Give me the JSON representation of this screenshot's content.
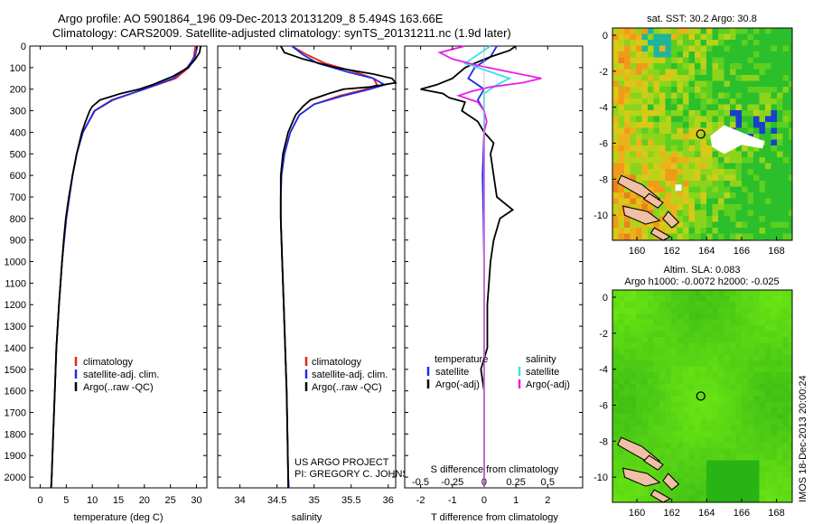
{
  "header": {
    "line1": "Argo profile: AO 5901864_196 09-Dec-2013 20131209_8 5.494S 163.66E",
    "line2": "Climatology: CARS2009. Satellite-adjusted climatology: synTS_20131211.nc (1.9d later)"
  },
  "colors": {
    "climatology": "#e8201c",
    "satellite": "#1b2ee8",
    "argo": "#000000",
    "salinity_satellite": "#36e3e8",
    "salinity_argo": "#e81ee8"
  },
  "chart_data": [
    {
      "type": "line",
      "name": "temperature-profile",
      "xlabel": "temperature (deg C)",
      "xlim": [
        -2,
        32
      ],
      "xticks": [
        "0",
        "5",
        "10",
        "15",
        "20",
        "25",
        "30"
      ],
      "ylim": [
        0,
        2050
      ],
      "yticks": [
        "0",
        "100",
        "200",
        "300",
        "400",
        "500",
        "600",
        "700",
        "800",
        "900",
        "1000",
        "1100",
        "1200",
        "1300",
        "1400",
        "1500",
        "1600",
        "1700",
        "1800",
        "1900",
        "2000"
      ],
      "legend": [
        "climatology",
        "satellite-adj. clim.",
        "Argo(..raw -QC)"
      ],
      "series": [
        {
          "name": "climatology",
          "depth": [
            0,
            50,
            100,
            150,
            200,
            250,
            300,
            400,
            500,
            600,
            700,
            800,
            900,
            1000,
            1200,
            1400,
            1600,
            1800,
            2000,
            2050
          ],
          "values": [
            29.8,
            29.5,
            28.5,
            26,
            20,
            14,
            10.5,
            8.2,
            7,
            6.2,
            5.6,
            5,
            4.6,
            4.2,
            3.6,
            3.1,
            2.8,
            2.5,
            2.2,
            2.1
          ]
        },
        {
          "name": "satellite-adj. clim.",
          "depth": [
            0,
            50,
            100,
            150,
            200,
            250,
            300,
            400,
            500,
            600,
            700,
            800,
            900,
            1000,
            1200,
            1400,
            1600,
            1800,
            2000,
            2050
          ],
          "values": [
            30.2,
            29.7,
            28.2,
            25.5,
            20,
            13.8,
            10.4,
            8.2,
            7,
            6.2,
            5.6,
            5,
            4.6,
            4.2,
            3.6,
            3.1,
            2.8,
            2.5,
            2.2,
            2.1
          ]
        },
        {
          "name": "Argo(..raw -QC)",
          "depth": [
            0,
            30,
            60,
            100,
            140,
            180,
            200,
            220,
            250,
            280,
            300,
            350,
            400,
            500,
            600,
            700,
            800,
            900,
            1000,
            1200,
            1400,
            1600,
            1800,
            2000,
            2050
          ],
          "values": [
            30.8,
            30.6,
            29.8,
            28.4,
            25.5,
            21.5,
            19,
            15.5,
            11.5,
            10,
            9.5,
            8.7,
            8,
            7,
            6.2,
            5.5,
            4.9,
            4.5,
            4.2,
            3.6,
            3.1,
            2.8,
            2.5,
            2.2,
            2.1
          ]
        }
      ]
    },
    {
      "type": "line",
      "name": "salinity-profile",
      "xlabel": "salinity",
      "xlim": [
        33.7,
        36.1
      ],
      "xticks": [
        "34",
        "34.5",
        "35",
        "35.5",
        "36"
      ],
      "ylim": [
        0,
        2050
      ],
      "legend": [
        "climatology",
        "satellite-adj. clim.",
        "Argo(..raw -QC)"
      ],
      "series": [
        {
          "name": "climatology",
          "depth": [
            0,
            40,
            80,
            120,
            150,
            180,
            200,
            230,
            270,
            320,
            400,
            500,
            600,
            700,
            800,
            900,
            1000,
            1200,
            1400,
            1600,
            1800,
            2000,
            2050
          ],
          "values": [
            34.7,
            34.9,
            35.15,
            35.55,
            35.8,
            35.85,
            35.7,
            35.35,
            35.0,
            34.8,
            34.68,
            34.6,
            34.56,
            34.55,
            34.55,
            34.56,
            34.57,
            34.59,
            34.61,
            34.63,
            34.64,
            34.65,
            34.66
          ]
        },
        {
          "name": "satellite-adj. clim.",
          "depth": [
            0,
            40,
            80,
            120,
            150,
            180,
            200,
            230,
            270,
            320,
            400,
            500,
            600,
            700,
            800,
            900,
            1000,
            1200,
            1400,
            1600,
            1800,
            2000,
            2050
          ],
          "values": [
            34.7,
            34.85,
            35.05,
            35.45,
            35.8,
            35.95,
            35.75,
            35.4,
            35.0,
            34.8,
            34.68,
            34.6,
            34.56,
            34.55,
            34.55,
            34.56,
            34.57,
            34.59,
            34.61,
            34.63,
            34.64,
            34.65,
            34.66
          ]
        },
        {
          "name": "Argo(..raw -QC)",
          "depth": [
            0,
            30,
            60,
            100,
            130,
            150,
            170,
            190,
            200,
            220,
            250,
            280,
            320,
            400,
            500,
            600,
            700,
            800,
            900,
            1000,
            1200,
            1400,
            1600,
            1800,
            2000,
            2050
          ],
          "values": [
            34.55,
            34.6,
            34.85,
            35.3,
            35.8,
            36.05,
            36.1,
            35.75,
            35.4,
            35.2,
            34.95,
            34.85,
            34.75,
            34.65,
            34.58,
            34.55,
            34.55,
            34.55,
            34.56,
            34.57,
            34.59,
            34.61,
            34.63,
            34.64,
            34.65,
            34.65
          ]
        }
      ]
    },
    {
      "type": "line",
      "name": "difference-profile",
      "xlabel_bottom": "T difference from climatology",
      "xlabel_top": "S difference from climatology",
      "xlim": [
        -2.5,
        3.1
      ],
      "xticks_T": [
        "-2",
        "-1",
        "0",
        "1",
        "2"
      ],
      "xticks_S": [
        "-0.5",
        "-0.25",
        "0",
        "0.25",
        "0.5"
      ],
      "legend_temperature": {
        "header": "temperature",
        "entries": [
          "satellite",
          "Argo(-adj)"
        ]
      },
      "legend_salinity": {
        "header": "salinity",
        "entries": [
          "satellite",
          "Argo(-adj)"
        ]
      },
      "series": [
        {
          "name": "T satellite",
          "depth": [
            0,
            50,
            100,
            150,
            200,
            250,
            300,
            400,
            600,
            800,
            1000,
            1500,
            2000,
            2050
          ],
          "values": [
            0.4,
            0.2,
            -0.3,
            -0.5,
            0,
            -0.2,
            0,
            0,
            -0.05,
            -0.02,
            0,
            0,
            0,
            0
          ]
        },
        {
          "name": "T Argo(-adj)",
          "depth": [
            0,
            20,
            50,
            80,
            100,
            150,
            180,
            200,
            220,
            240,
            260,
            300,
            350,
            400,
            450,
            500,
            600,
            700,
            760,
            800,
            900,
            1000,
            1200,
            1400,
            1500,
            1600,
            1800,
            2000,
            2050
          ],
          "values": [
            1.0,
            0.8,
            0.2,
            -0.3,
            -0.6,
            -1.0,
            -1.5,
            -2.0,
            -1.3,
            -1.1,
            -0.6,
            -0.7,
            -0.2,
            0,
            0.3,
            0.2,
            0.3,
            0.4,
            0.9,
            0.5,
            0.3,
            0.2,
            0.1,
            0.1,
            -0.1,
            0,
            0,
            0,
            0
          ]
        },
        {
          "name": "S satellite",
          "depth": [
            0,
            40,
            80,
            120,
            150,
            180,
            220,
            300,
            400,
            600,
            1000,
            1500,
            2000,
            2050
          ],
          "values": [
            0.05,
            -0.05,
            -0.15,
            0.05,
            0.2,
            0.1,
            0.0,
            0.0,
            0.0,
            0.0,
            0.0,
            0.0,
            0.0,
            0.0
          ]
        },
        {
          "name": "S Argo(-adj)",
          "depth": [
            0,
            30,
            60,
            90,
            120,
            150,
            170,
            190,
            210,
            230,
            260,
            300,
            350,
            400,
            500,
            700,
            1000,
            1500,
            2000,
            2050
          ],
          "values": [
            -0.15,
            -0.35,
            -0.25,
            -0.05,
            0.2,
            0.45,
            0.3,
            0.05,
            -0.1,
            -0.2,
            -0.05,
            0.0,
            0.02,
            0.0,
            0.0,
            0.0,
            0.0,
            0.0,
            0.0,
            0.0
          ]
        }
      ]
    },
    {
      "type": "heatmap",
      "name": "sst-map",
      "title": "sat. SST: 30.2 Argo: 30.8",
      "xticks": [
        "160",
        "162",
        "164",
        "166",
        "168"
      ],
      "yticks": [
        "0",
        "-2",
        "-4",
        "-6",
        "-8",
        "-10"
      ],
      "xlim": [
        158.6,
        168.9
      ],
      "ylim": [
        -11.4,
        0.4
      ],
      "marker": {
        "lon": 163.66,
        "lat": -5.494
      }
    },
    {
      "type": "heatmap",
      "name": "sla-map",
      "title_line1": "Altim. SLA: 0.083",
      "title_line2": "Argo h1000: -0.0072 h2000: -0.025",
      "xticks": [
        "160",
        "162",
        "164",
        "166",
        "168"
      ],
      "yticks": [
        "0",
        "-2",
        "-4",
        "-6",
        "-8",
        "-10"
      ],
      "xlim": [
        158.6,
        168.9
      ],
      "ylim": [
        -11.4,
        0.4
      ],
      "marker": {
        "lon": 163.66,
        "lat": -5.494
      }
    }
  ],
  "credits": {
    "project": "US ARGO PROJECT",
    "pi": "PI: GREGORY C. JOHNSON",
    "watermark": "IMOS 18-Dec-2013 20:00:24"
  }
}
